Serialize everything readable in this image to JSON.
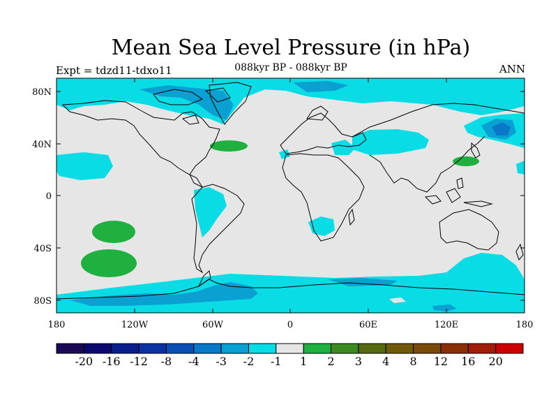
{
  "header": {
    "title": "Mean Sea Level Pressure (in hPa)",
    "subtitle": "088kyr BP - 088kyr BP",
    "left_label": "Expt = tdzd11-tdxo11",
    "right_label": "ANN"
  },
  "axes": {
    "lat_labels": [
      "80N",
      "40N",
      "0",
      "40S",
      "80S"
    ],
    "lon_labels": [
      "180",
      "120W",
      "60W",
      "0",
      "60E",
      "120E",
      "180"
    ]
  },
  "colorbar": {
    "colors": [
      "#1a0a55",
      "#0a0a6e",
      "#0a1e8c",
      "#0a32a0",
      "#0a50b4",
      "#0a78c8",
      "#0aa0d2",
      "#0adce6",
      "#e6e6e6",
      "#20b040",
      "#3a8a20",
      "#556a10",
      "#6e5a08",
      "#7a4a08",
      "#8a3008",
      "#a01e08",
      "#cc0000"
    ],
    "labels": [
      "-20",
      "-16",
      "-12",
      "-8",
      "-4",
      "-3",
      "-2",
      "-1",
      "1",
      "2",
      "3",
      "4",
      "8",
      "12",
      "16",
      "20"
    ]
  },
  "legend_colors": {
    "background": "#e6e6e6",
    "neg_1_2": "#0adce6",
    "neg_2_3": "#0aa0d2",
    "neg_3_4": "#0a78c8",
    "pos_1_2": "#20b040"
  }
}
